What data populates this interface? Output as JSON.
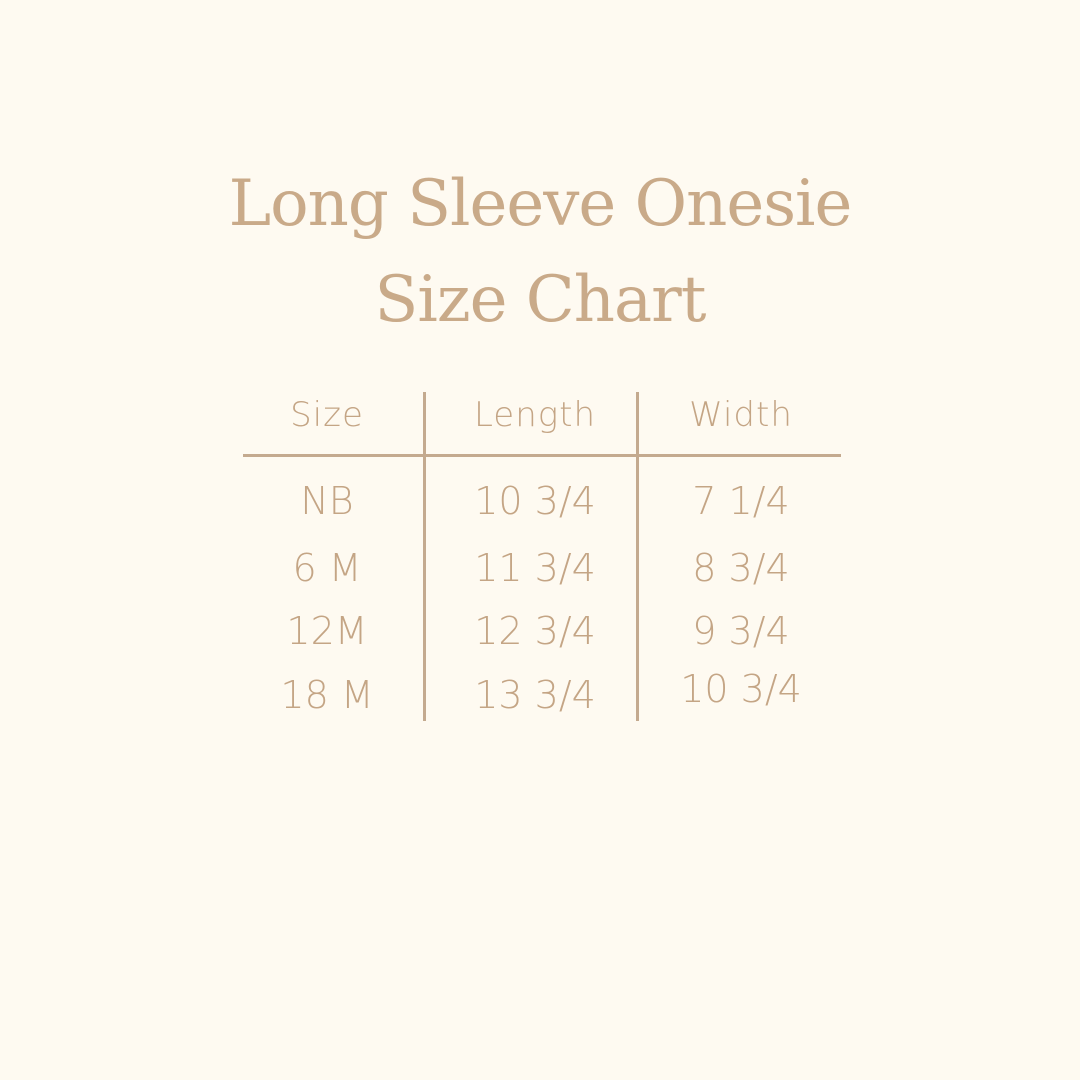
{
  "title": {
    "line1": "Long Sleeve Onesie",
    "line2": "Size Chart"
  },
  "colors": {
    "background": "#fefaf1",
    "text": "#c4a585",
    "rule": "#c4aa8f"
  },
  "table": {
    "headers": [
      "Size",
      "Length",
      "Width"
    ],
    "rows": [
      [
        "NB",
        "10 3/4",
        "7 1/4"
      ],
      [
        "6 M",
        "11 3/4",
        "8 3/4"
      ],
      [
        "12M",
        "12 3/4",
        "9 3/4"
      ],
      [
        "18 M",
        "13 3/4",
        "10 3/4"
      ]
    ]
  }
}
